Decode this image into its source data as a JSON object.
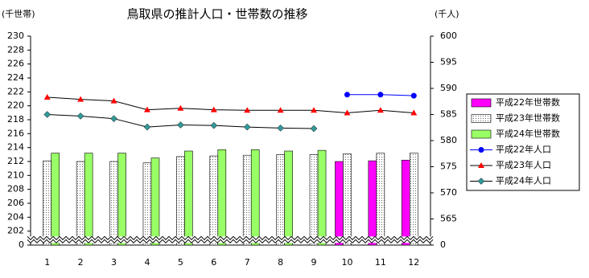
{
  "chart_data": {
    "type": "bar",
    "title": "鳥取県の推計人口・世帯数の推移",
    "y_label": "(千世帯)",
    "y2_label": "(千人)",
    "categories": [
      "1",
      "2",
      "3",
      "4",
      "5",
      "6",
      "7",
      "8",
      "9",
      "10",
      "11",
      "12"
    ],
    "ylim": [
      0,
      230
    ],
    "yticks": [
      0,
      202,
      204,
      206,
      208,
      210,
      212,
      214,
      216,
      218,
      220,
      222,
      224,
      226,
      228,
      230
    ],
    "y2lim": [
      0,
      600
    ],
    "y2ticks": [
      0,
      565,
      570,
      575,
      580,
      585,
      590,
      595,
      600
    ],
    "axis_break": true,
    "legend": "right",
    "series": [
      {
        "name": "平成22年世帯数",
        "type": "bar",
        "color": "#ff00ff",
        "values": [
          null,
          null,
          null,
          null,
          null,
          null,
          null,
          null,
          null,
          212.0,
          212.1,
          212.2
        ]
      },
      {
        "name": "平成23年世帯数",
        "type": "bar",
        "color": "dotted",
        "values": [
          212.1,
          212.0,
          212.0,
          211.8,
          212.7,
          212.8,
          212.9,
          213.0,
          213.0,
          213.1,
          213.2,
          213.2
        ]
      },
      {
        "name": "平成24年世帯数",
        "type": "bar",
        "color": "#99ff66",
        "values": [
          213.2,
          213.2,
          213.2,
          212.5,
          213.5,
          213.7,
          213.7,
          213.5,
          213.6,
          null,
          null,
          null
        ]
      },
      {
        "name": "平成22年人口",
        "type": "line",
        "axis": "y2",
        "marker": "circle",
        "color": "#0000ff",
        "line_color": "#0000ff",
        "values": [
          null,
          null,
          null,
          null,
          null,
          null,
          null,
          null,
          null,
          588.8,
          588.8,
          588.6
        ]
      },
      {
        "name": "平成23年人口",
        "type": "line",
        "axis": "y2",
        "marker": "triangle",
        "color": "#ff0000",
        "line_color": "#000000",
        "values": [
          588.3,
          587.9,
          587.6,
          585.9,
          586.2,
          585.9,
          585.8,
          585.8,
          585.8,
          585.3,
          585.8,
          585.3
        ]
      },
      {
        "name": "平成24年人口",
        "type": "line",
        "axis": "y2",
        "marker": "diamond",
        "color": "#339999",
        "line_color": "#000000",
        "values": [
          585.0,
          584.7,
          584.2,
          582.6,
          583.0,
          582.9,
          582.6,
          582.4,
          582.3,
          null,
          null,
          null
        ]
      }
    ]
  }
}
